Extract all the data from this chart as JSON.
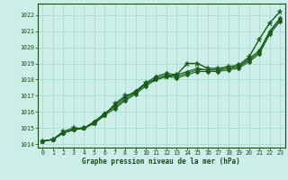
{
  "xlabel": "Graphe pression niveau de la mer (hPa)",
  "xlim": [
    -0.5,
    23.5
  ],
  "ylim": [
    1013.8,
    1022.7
  ],
  "yticks": [
    1014,
    1015,
    1016,
    1017,
    1018,
    1019,
    1020,
    1021,
    1022
  ],
  "xticks": [
    0,
    1,
    2,
    3,
    4,
    5,
    6,
    7,
    8,
    9,
    10,
    11,
    12,
    13,
    14,
    15,
    16,
    17,
    18,
    19,
    20,
    21,
    22,
    23
  ],
  "bg_color": "#cceee8",
  "grid_color": "#aaddcc",
  "line_color": "#1a5c1a",
  "series1": [
    1014.2,
    1014.3,
    1014.8,
    1015.0,
    1015.0,
    1015.3,
    1015.8,
    1016.5,
    1017.0,
    1017.2,
    1017.8,
    1018.0,
    1018.2,
    1018.3,
    1019.0,
    1019.0,
    1018.7,
    1018.7,
    1018.8,
    1018.9,
    1019.4,
    1020.5,
    1021.5,
    1022.2
  ],
  "series2": [
    1014.2,
    1014.3,
    1014.7,
    1014.9,
    1015.0,
    1015.4,
    1015.9,
    1016.4,
    1016.9,
    1017.3,
    1017.8,
    1018.2,
    1018.4,
    1018.3,
    1018.5,
    1018.7,
    1018.6,
    1018.6,
    1018.7,
    1018.8,
    1019.3,
    1019.8,
    1021.0,
    1021.8
  ],
  "series3": [
    1014.2,
    1014.3,
    1014.7,
    1014.9,
    1015.0,
    1015.4,
    1015.9,
    1016.3,
    1016.8,
    1017.2,
    1017.7,
    1018.1,
    1018.3,
    1018.2,
    1018.4,
    1018.6,
    1018.6,
    1018.6,
    1018.7,
    1018.8,
    1019.2,
    1019.7,
    1020.9,
    1021.7
  ],
  "series4": [
    1014.2,
    1014.3,
    1014.7,
    1014.9,
    1015.0,
    1015.3,
    1015.8,
    1016.2,
    1016.7,
    1017.1,
    1017.6,
    1018.0,
    1018.2,
    1018.1,
    1018.3,
    1018.5,
    1018.5,
    1018.5,
    1018.6,
    1018.7,
    1019.1,
    1019.6,
    1020.8,
    1021.6
  ]
}
